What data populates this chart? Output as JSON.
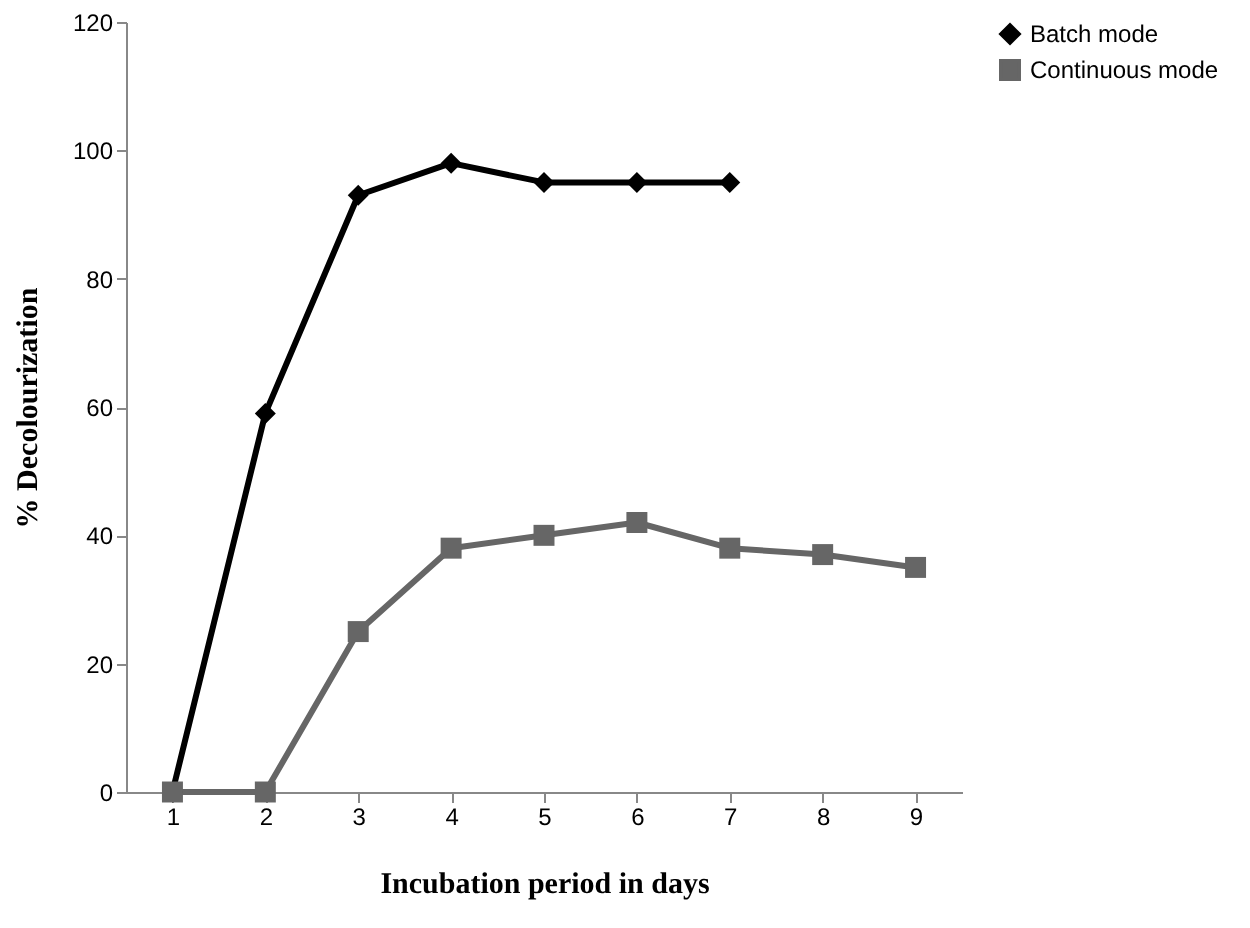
{
  "chart_data": {
    "type": "line",
    "xlabel": "Incubation period in days",
    "ylabel": "% Decolourization",
    "categories": [
      "1",
      "2",
      "3",
      "4",
      "5",
      "6",
      "7",
      "8",
      "9"
    ],
    "series": [
      {
        "name": "Batch mode",
        "color": "#000000",
        "marker": "diamond",
        "values": [
          0,
          59,
          93,
          98,
          95,
          95,
          95,
          null,
          null
        ]
      },
      {
        "name": "Continuous mode",
        "color": "#666666",
        "marker": "square",
        "values": [
          0,
          0,
          25,
          38,
          40,
          42,
          38,
          37,
          35
        ]
      }
    ],
    "ylim": [
      0,
      120
    ],
    "yticks": [
      0,
      20,
      40,
      60,
      80,
      100,
      120
    ],
    "grid": false,
    "legend": "right",
    "line_style": "solid"
  }
}
